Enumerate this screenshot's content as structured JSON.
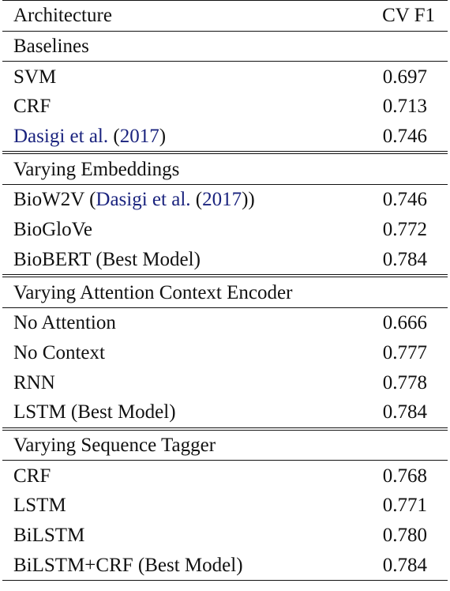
{
  "header": {
    "col_architecture": "Architecture",
    "col_cvf1": "CV F1"
  },
  "sections": [
    {
      "title": "Baselines",
      "rows": [
        {
          "arch": "SVM",
          "f1": "0.697"
        },
        {
          "arch": "CRF",
          "f1": "0.713"
        },
        {
          "arch_link": "Dasigi et al.",
          "arch_year": "2017",
          "f1": "0.746"
        }
      ]
    },
    {
      "title": "Varying Embeddings",
      "rows": [
        {
          "arch": "BioW2V",
          "arch_link": "Dasigi et al.",
          "arch_year": "2017",
          "f1": "0.746"
        },
        {
          "arch": "BioGloVe",
          "f1": "0.772"
        },
        {
          "arch": "BioBERT (Best Model)",
          "f1": "0.784"
        }
      ]
    },
    {
      "title": "Varying Attention Context Encoder",
      "rows": [
        {
          "arch": "No Attention",
          "f1": "0.666"
        },
        {
          "arch": "No Context",
          "f1": "0.777"
        },
        {
          "arch": "RNN",
          "f1": "0.778"
        },
        {
          "arch": "LSTM (Best Model)",
          "f1": "0.784"
        }
      ]
    },
    {
      "title": "Varying Sequence Tagger",
      "rows": [
        {
          "arch": "CRF",
          "f1": "0.768"
        },
        {
          "arch": "LSTM",
          "f1": "0.771"
        },
        {
          "arch": "BiLSTM",
          "f1": "0.780"
        },
        {
          "arch": "BiLSTM+CRF (Best Model)",
          "f1": "0.784"
        }
      ]
    }
  ]
}
